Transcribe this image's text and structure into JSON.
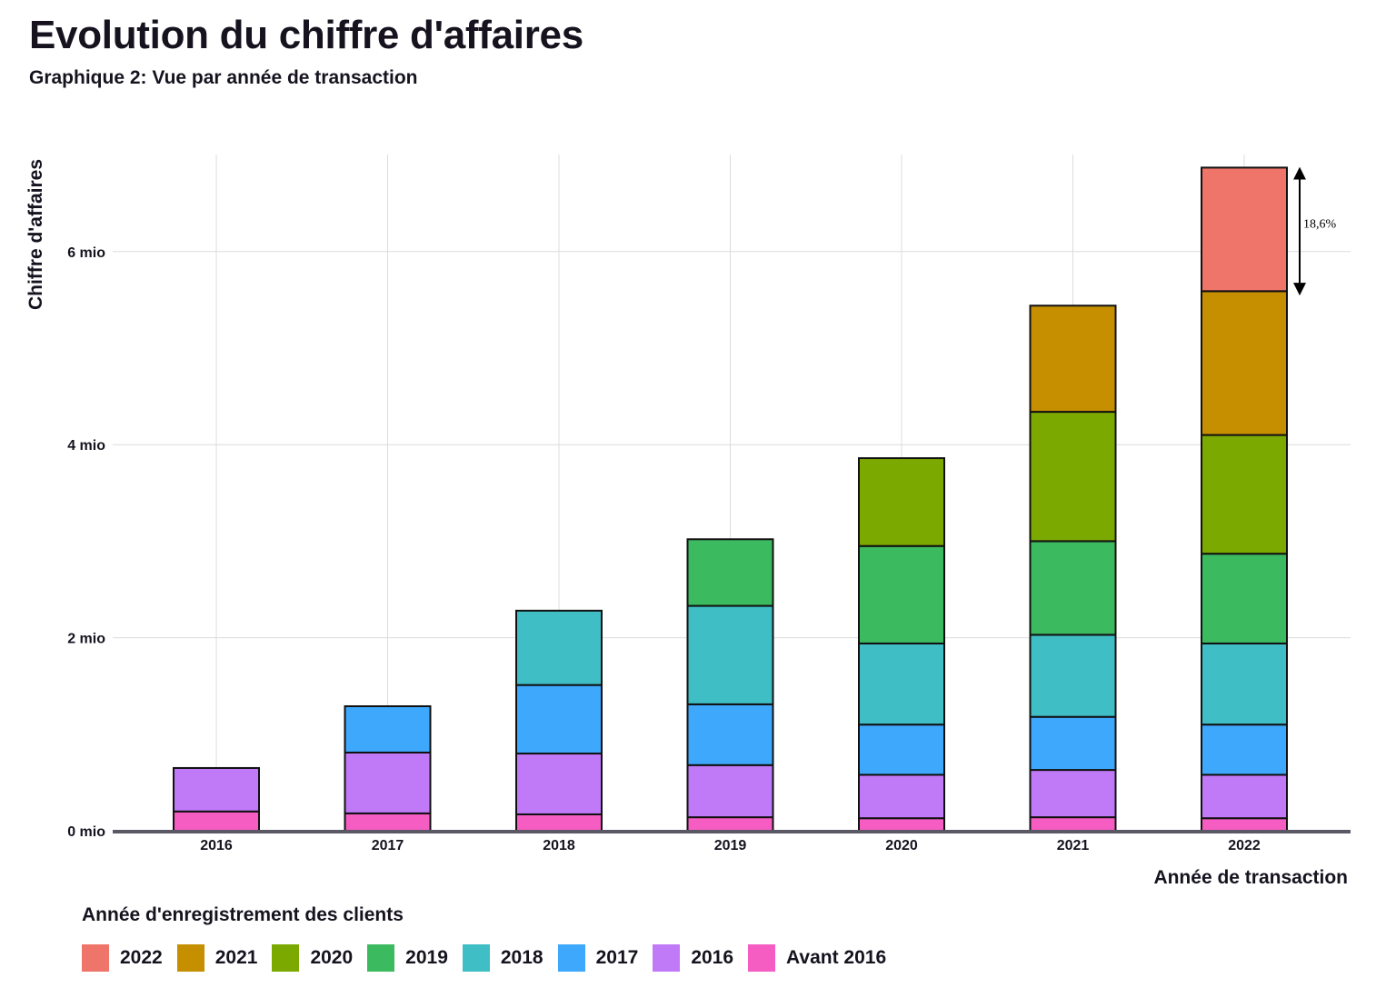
{
  "title": "Evolution du chiffre d'affaires",
  "subtitle": "Graphique 2: Vue par année de transaction",
  "chart_data": {
    "type": "bar",
    "stacked": true,
    "categories": [
      "2016",
      "2017",
      "2018",
      "2019",
      "2020",
      "2021",
      "2022"
    ],
    "ylabel": "Chiffre d'affaires",
    "xlabel": "Année de transaction",
    "ylim": [
      0,
      7
    ],
    "yticks": [
      {
        "value": 0,
        "label": "0 mio"
      },
      {
        "value": 2,
        "label": "2 mio"
      },
      {
        "value": 4,
        "label": "4 mio"
      },
      {
        "value": 6,
        "label": "6 mio"
      }
    ],
    "grid": true,
    "legend_title": "Année d'enregistrement des clients",
    "legend_position": "bottom-left",
    "series": [
      {
        "name": "Avant 2016",
        "color": "#f55dc3",
        "values": [
          0.2,
          0.18,
          0.17,
          0.14,
          0.13,
          0.14,
          0.13
        ]
      },
      {
        "name": "2016",
        "color": "#c07af8",
        "values": [
          0.45,
          0.63,
          0.63,
          0.54,
          0.45,
          0.49,
          0.45
        ]
      },
      {
        "name": "2017",
        "color": "#3ea8fc",
        "values": [
          0,
          0.48,
          0.71,
          0.63,
          0.52,
          0.55,
          0.52
        ]
      },
      {
        "name": "2018",
        "color": "#3fbec5",
        "values": [
          0,
          0,
          0.77,
          1.02,
          0.84,
          0.85,
          0.84
        ]
      },
      {
        "name": "2019",
        "color": "#3cba60",
        "values": [
          0,
          0,
          0,
          0.69,
          1.01,
          0.97,
          0.93
        ]
      },
      {
        "name": "2020",
        "color": "#7ca900",
        "values": [
          0,
          0,
          0,
          0,
          0.91,
          1.34,
          1.23
        ]
      },
      {
        "name": "2021",
        "color": "#c68f00",
        "values": [
          0,
          0,
          0,
          0,
          0,
          1.1,
          1.49
        ]
      },
      {
        "name": "2022",
        "color": "#ef756a",
        "values": [
          0,
          0,
          0,
          0,
          0,
          0,
          1.28
        ]
      }
    ],
    "annotation": {
      "category": "2022",
      "text": "18,6%"
    }
  },
  "legend": {
    "title": "Année d'enregistrement des clients",
    "items": [
      {
        "label": "2022",
        "color": "#ef756a"
      },
      {
        "label": "2021",
        "color": "#c68f00"
      },
      {
        "label": "2020",
        "color": "#7ca900"
      },
      {
        "label": "2019",
        "color": "#3cba60"
      },
      {
        "label": "2018",
        "color": "#3fbec5"
      },
      {
        "label": "2017",
        "color": "#3ea8fc"
      },
      {
        "label": "2016",
        "color": "#c07af8"
      },
      {
        "label": "Avant 2016",
        "color": "#f55dc3"
      }
    ]
  }
}
